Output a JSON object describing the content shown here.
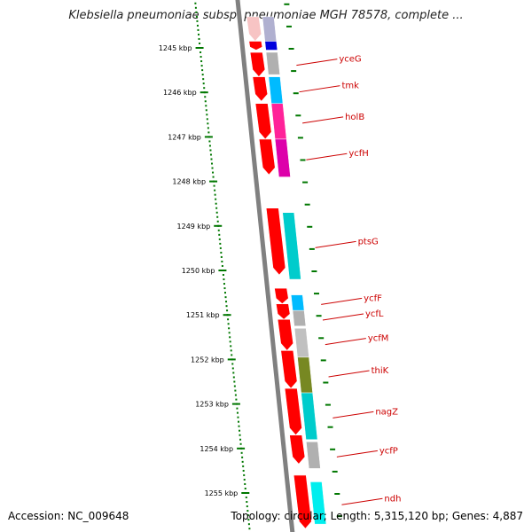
{
  "title": "Klebsiella pneumoniae subsp. pneumoniae MGH 78578, complete ...",
  "footer": {
    "accession": "Accession: NC_009648",
    "summary": "Topology: circular; Length: 5,315,120 bp; Genes: 4,887"
  },
  "scale": {
    "unit": "kbp",
    "ticks": [
      {
        "label": "1245 kbp",
        "value": 1245
      },
      {
        "label": "1246 kbp",
        "value": 1246
      },
      {
        "label": "1247 kbp",
        "value": 1247
      },
      {
        "label": "1248 kbp",
        "value": 1248
      },
      {
        "label": "1249 kbp",
        "value": 1249
      },
      {
        "label": "1250 kbp",
        "value": 1250
      },
      {
        "label": "1251 kbp",
        "value": 1251
      },
      {
        "label": "1252 kbp",
        "value": 1252
      },
      {
        "label": "1253 kbp",
        "value": 1253
      },
      {
        "label": "1254 kbp",
        "value": 1254
      },
      {
        "label": "1255 kbp",
        "value": 1255
      }
    ]
  },
  "colors": {
    "cds": "#ff0000",
    "cds_faded": "#f7c4c4",
    "backbone": "#808080",
    "tick": "#007700",
    "gene_label": "#cc0000",
    "gene_blue": "#0000dd",
    "gene_gray": "#b0b0b0",
    "gene_cyan": "#00bbff",
    "gene_pink": "#ff2299",
    "gene_magenta": "#dd00aa",
    "gene_teal": "#00cccc",
    "gene_olive": "#778822",
    "gene_aqua": "#00eeee"
  },
  "genes": [
    {
      "name": "yceG",
      "start": 1245.1,
      "end": 1245.6,
      "color": "#b0b0b0"
    },
    {
      "name": "tmk",
      "start": 1245.65,
      "end": 1246.25,
      "color": "#00bbff"
    },
    {
      "name": "holB",
      "start": 1246.25,
      "end": 1247.05,
      "color": "#ff2299"
    },
    {
      "name": "ycfH",
      "start": 1247.05,
      "end": 1247.9,
      "color": "#dd00aa"
    },
    {
      "name": "ptsG",
      "start": 1248.7,
      "end": 1250.2,
      "color": "#00cccc"
    },
    {
      "name": "ycfF",
      "start": 1250.55,
      "end": 1250.9,
      "color": "#00bbff"
    },
    {
      "name": "ycfL",
      "start": 1250.9,
      "end": 1251.25,
      "color": "#b0b0b0"
    },
    {
      "name": "ycfM",
      "start": 1251.3,
      "end": 1251.95,
      "color": "#c0c0c0"
    },
    {
      "name": "thiK",
      "start": 1251.95,
      "end": 1252.75,
      "color": "#778822"
    },
    {
      "name": "nagZ",
      "start": 1252.75,
      "end": 1253.8,
      "color": "#00cccc"
    },
    {
      "name": "ycfP",
      "start": 1253.85,
      "end": 1254.45,
      "color": "#b0b0b0"
    },
    {
      "name": "ndh",
      "start": 1254.75,
      "end": 1255.7,
      "color": "#00eeee"
    }
  ],
  "cds_blocks": [
    {
      "start": 1244.3,
      "end": 1244.85,
      "faded": true
    },
    {
      "start": 1244.85,
      "end": 1245.05
    },
    {
      "start": 1245.1,
      "end": 1245.65
    },
    {
      "start": 1245.65,
      "end": 1246.2
    },
    {
      "start": 1246.25,
      "end": 1247.05
    },
    {
      "start": 1247.05,
      "end": 1247.85
    },
    {
      "start": 1248.6,
      "end": 1250.1
    },
    {
      "start": 1250.4,
      "end": 1250.75
    },
    {
      "start": 1250.75,
      "end": 1251.1
    },
    {
      "start": 1251.1,
      "end": 1251.8
    },
    {
      "start": 1251.8,
      "end": 1252.65
    },
    {
      "start": 1252.65,
      "end": 1253.7
    },
    {
      "start": 1253.7,
      "end": 1254.35
    },
    {
      "start": 1254.6,
      "end": 1255.8
    }
  ],
  "top_partial": [
    {
      "start": 1244.3,
      "end": 1244.85,
      "color": "#b0b0d0"
    },
    {
      "start": 1244.85,
      "end": 1245.05,
      "color": "#0000dd"
    }
  ]
}
